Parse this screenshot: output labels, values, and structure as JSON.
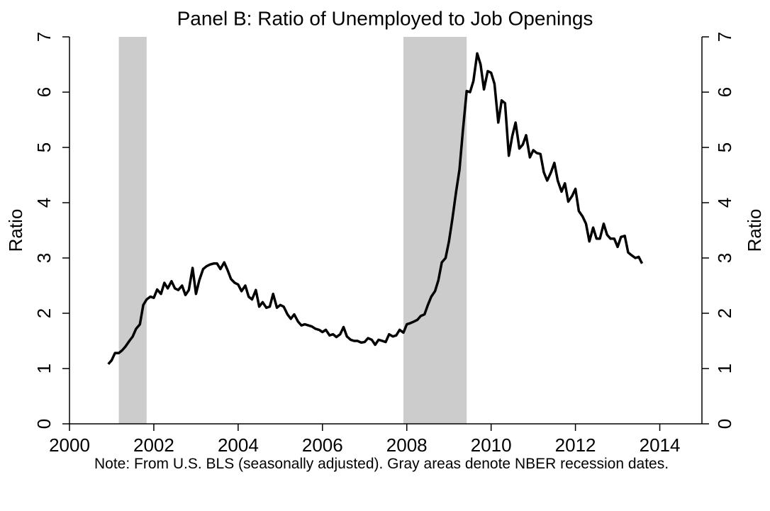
{
  "chart_data": {
    "type": "line",
    "title": "Panel B:  Ratio of Unemployed to Job Openings",
    "ylabel": "Ratio",
    "y2label": "Ratio",
    "note": "Note:  From U.S. BLS (seasonally adjusted).  Gray areas denote NBER recession dates.",
    "xlim": [
      2000,
      2015
    ],
    "xticks": [
      2000,
      2002,
      2004,
      2006,
      2008,
      2010,
      2012,
      2014
    ],
    "ylim": [
      0,
      7
    ],
    "yticks": [
      0,
      1,
      2,
      3,
      4,
      5,
      6,
      7
    ],
    "y2lim": [
      0,
      7
    ],
    "y2ticks": [
      0,
      1,
      2,
      3,
      4,
      5,
      6,
      7
    ],
    "recessions": [
      [
        2001.17,
        2001.83
      ],
      [
        2007.92,
        2009.42
      ]
    ],
    "recession_color": "#cccccc",
    "x": [
      2000.92,
      2001.0,
      2001.08,
      2001.17,
      2001.25,
      2001.33,
      2001.42,
      2001.5,
      2001.58,
      2001.67,
      2001.75,
      2001.83,
      2001.92,
      2002.0,
      2002.08,
      2002.17,
      2002.25,
      2002.33,
      2002.42,
      2002.5,
      2002.58,
      2002.67,
      2002.75,
      2002.83,
      2002.92,
      2003.0,
      2003.08,
      2003.17,
      2003.25,
      2003.33,
      2003.42,
      2003.5,
      2003.58,
      2003.67,
      2003.75,
      2003.83,
      2003.92,
      2004.0,
      2004.08,
      2004.17,
      2004.25,
      2004.33,
      2004.42,
      2004.5,
      2004.58,
      2004.67,
      2004.75,
      2004.83,
      2004.92,
      2005.0,
      2005.08,
      2005.17,
      2005.25,
      2005.33,
      2005.42,
      2005.5,
      2005.58,
      2005.67,
      2005.75,
      2005.83,
      2005.92,
      2006.0,
      2006.08,
      2006.17,
      2006.25,
      2006.33,
      2006.42,
      2006.5,
      2006.58,
      2006.67,
      2006.75,
      2006.83,
      2006.92,
      2007.0,
      2007.08,
      2007.17,
      2007.25,
      2007.33,
      2007.42,
      2007.5,
      2007.58,
      2007.67,
      2007.75,
      2007.83,
      2007.92,
      2008.0,
      2008.08,
      2008.17,
      2008.25,
      2008.33,
      2008.42,
      2008.5,
      2008.58,
      2008.67,
      2008.75,
      2008.83,
      2008.92,
      2009.0,
      2009.08,
      2009.17,
      2009.25,
      2009.33,
      2009.42,
      2009.5,
      2009.58,
      2009.67,
      2009.75,
      2009.83,
      2009.92,
      2010.0,
      2010.08,
      2010.17,
      2010.25,
      2010.33,
      2010.42,
      2010.5,
      2010.58,
      2010.67,
      2010.75,
      2010.83,
      2010.92,
      2011.0,
      2011.08,
      2011.17,
      2011.25,
      2011.33,
      2011.42,
      2011.5,
      2011.58,
      2011.67,
      2011.75,
      2011.83,
      2011.92,
      2012.0,
      2012.08,
      2012.17,
      2012.25,
      2012.33,
      2012.42,
      2012.5,
      2012.58,
      2012.67,
      2012.75,
      2012.83,
      2012.92,
      2013.0,
      2013.08,
      2013.17,
      2013.25,
      2013.33,
      2013.42,
      2013.5,
      2013.58
    ],
    "series": [
      {
        "color": "#000000",
        "values": [
          1.08,
          1.15,
          1.28,
          1.28,
          1.33,
          1.4,
          1.5,
          1.58,
          1.72,
          1.8,
          2.15,
          2.25,
          2.3,
          2.28,
          2.43,
          2.35,
          2.55,
          2.45,
          2.58,
          2.45,
          2.42,
          2.5,
          2.33,
          2.42,
          2.82,
          2.35,
          2.6,
          2.8,
          2.85,
          2.88,
          2.9,
          2.9,
          2.8,
          2.92,
          2.78,
          2.62,
          2.55,
          2.52,
          2.4,
          2.5,
          2.3,
          2.25,
          2.42,
          2.12,
          2.2,
          2.1,
          2.12,
          2.35,
          2.1,
          2.15,
          2.12,
          1.98,
          1.9,
          1.98,
          1.85,
          1.78,
          1.8,
          1.78,
          1.76,
          1.72,
          1.7,
          1.66,
          1.7,
          1.6,
          1.62,
          1.57,
          1.62,
          1.75,
          1.58,
          1.52,
          1.5,
          1.5,
          1.47,
          1.48,
          1.55,
          1.52,
          1.43,
          1.52,
          1.5,
          1.48,
          1.62,
          1.58,
          1.6,
          1.7,
          1.65,
          1.8,
          1.82,
          1.85,
          1.88,
          1.95,
          1.98,
          2.15,
          2.3,
          2.4,
          2.6,
          2.92,
          3.0,
          3.3,
          3.7,
          4.2,
          4.6,
          5.3,
          6.02,
          6.0,
          6.2,
          6.7,
          6.5,
          6.05,
          6.38,
          6.35,
          6.15,
          5.45,
          5.85,
          5.8,
          4.85,
          5.2,
          5.45,
          4.98,
          5.05,
          5.22,
          4.82,
          4.95,
          4.9,
          4.88,
          4.55,
          4.4,
          4.55,
          4.72,
          4.4,
          4.2,
          4.35,
          4.02,
          4.12,
          4.25,
          3.85,
          3.75,
          3.62,
          3.3,
          3.55,
          3.35,
          3.35,
          3.62,
          3.42,
          3.35,
          3.35,
          3.2,
          3.38,
          3.4,
          3.1,
          3.05,
          3.0,
          3.02,
          2.9
        ]
      }
    ]
  }
}
